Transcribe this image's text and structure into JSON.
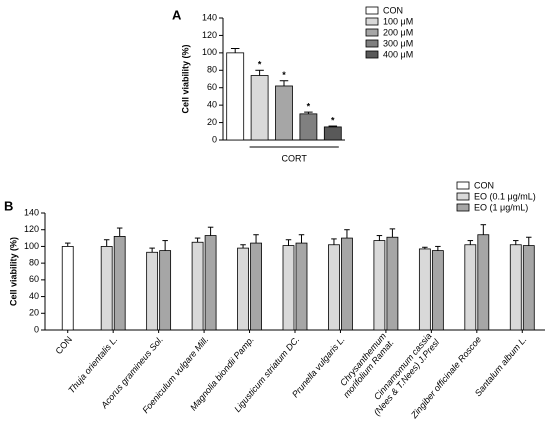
{
  "chart_data": [
    {
      "type": "bar",
      "panel_label": "A",
      "ylabel": "Cell viability (%)",
      "ylim": [
        0,
        140
      ],
      "yticks": [
        0,
        20,
        40,
        60,
        80,
        100,
        120,
        140
      ],
      "group_label": "CORT",
      "series": [
        {
          "name": "CON",
          "color": "#ffffff",
          "values": [
            100
          ],
          "errors": [
            5
          ],
          "label": null
        },
        {
          "name": "100 μM",
          "color": "#d9d9d9",
          "values": [
            74
          ],
          "errors": [
            6
          ],
          "label": "*"
        },
        {
          "name": "200 μM",
          "color": "#a6a6a6",
          "values": [
            62
          ],
          "errors": [
            6
          ],
          "label": "*"
        },
        {
          "name": "300 μM",
          "color": "#808080",
          "values": [
            30
          ],
          "errors": [
            2
          ],
          "label": "*"
        },
        {
          "name": "400 μM",
          "color": "#595959",
          "values": [
            15
          ],
          "errors": [
            1
          ],
          "label": "*"
        }
      ]
    },
    {
      "type": "grouped_bar",
      "panel_label": "B",
      "ylabel": "Cell viability (%)",
      "ylim": [
        0,
        140
      ],
      "yticks": [
        0,
        20,
        40,
        60,
        80,
        100,
        120,
        140
      ],
      "categories": [
        "CON",
        "Thuja orientalis L.",
        "Acorus gramineus Sol.",
        "Foeniculum vulgare Mill.",
        "Magnolia biondii Pamp.",
        "Ligusticum striatum DC.",
        "Prunella vulgaris L.",
        [
          "Chrysanthemum",
          "morifolium Ramat."
        ],
        [
          "Cinnamomum cassia",
          "(Nees & T.Nees) J.Presl"
        ],
        "Zingiber officinale Roscoe",
        "Santalum album L."
      ],
      "series": [
        {
          "name": "CON",
          "color": "#ffffff",
          "values": [
            100,
            null,
            null,
            null,
            null,
            null,
            null,
            null,
            null,
            null,
            null
          ],
          "errors": [
            4,
            null,
            null,
            null,
            null,
            null,
            null,
            null,
            null,
            null,
            null
          ]
        },
        {
          "name": "EO (0.1 μg/mL)",
          "color": "#d9d9d9",
          "values": [
            null,
            100,
            93,
            105,
            98,
            101,
            102,
            107,
            97,
            102,
            102
          ],
          "errors": [
            null,
            8,
            5,
            5,
            4,
            7,
            7,
            6,
            2,
            5,
            5
          ]
        },
        {
          "name": "EO (1 μg/mL)",
          "color": "#a6a6a6",
          "values": [
            null,
            112,
            95,
            113,
            104,
            104,
            110,
            111,
            95,
            114,
            101
          ],
          "errors": [
            null,
            10,
            12,
            10,
            10,
            10,
            10,
            10,
            5,
            12,
            10
          ]
        }
      ]
    }
  ]
}
